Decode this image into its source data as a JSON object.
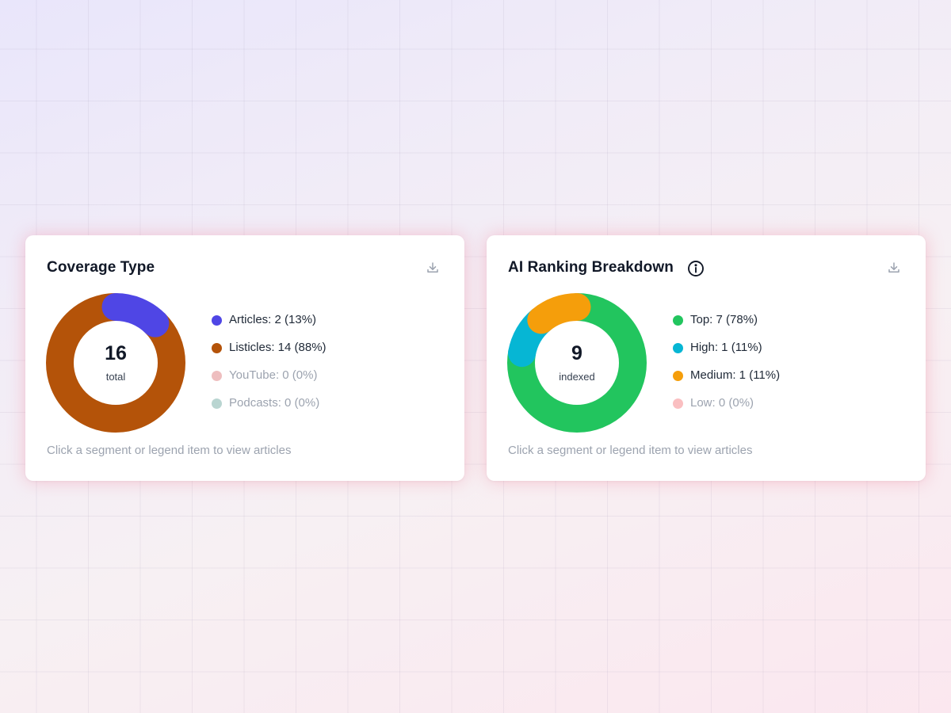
{
  "cards": [
    {
      "title": "Coverage Type",
      "center_value": "16",
      "center_label": "total",
      "hint": "Click a segment or legend item to view articles",
      "download_icon": "download-icon",
      "legend": [
        {
          "label": "Articles: 2 (13%)",
          "color": "#4f46e5",
          "value": 2,
          "muted": false
        },
        {
          "label": "Listicles: 14 (88%)",
          "color": "#b45309",
          "value": 14,
          "muted": false
        },
        {
          "label": "YouTube: 0 (0%)",
          "color": "#e0898b",
          "value": 0,
          "muted": true
        },
        {
          "label": "Podcasts: 0 (0%)",
          "color": "#7fb3ab",
          "value": 0,
          "muted": true
        }
      ]
    },
    {
      "title": "AI Ranking Breakdown",
      "title_icon": "info-icon",
      "center_value": "9",
      "center_label": "indexed",
      "hint": "Click a segment or legend item to view articles",
      "download_icon": "download-icon",
      "legend": [
        {
          "label": "Top: 7 (78%)",
          "color": "#22c55e",
          "value": 7,
          "muted": false
        },
        {
          "label": "High: 1 (11%)",
          "color": "#06b6d4",
          "value": 1,
          "muted": false
        },
        {
          "label": "Medium: 1 (11%)",
          "color": "#f59e0b",
          "value": 1,
          "muted": false
        },
        {
          "label": "Low: 0 (0%)",
          "color": "#f58a8e",
          "value": 0,
          "muted": true
        }
      ]
    }
  ]
}
